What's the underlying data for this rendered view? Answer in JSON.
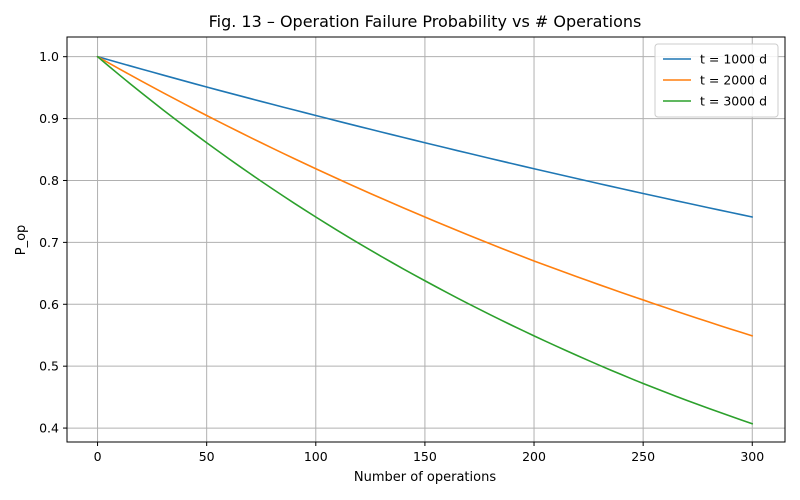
{
  "chart_data": {
    "type": "line",
    "title": "Fig. 13 – Operation Failure Probability vs # Operations",
    "xlabel": "Number of operations",
    "ylabel": "P_op",
    "xlim": [
      -14,
      315
    ],
    "ylim": [
      0.3775,
      1.0318
    ],
    "xticks": [
      0,
      50,
      100,
      150,
      200,
      250,
      300
    ],
    "yticks": [
      0.4,
      0.5,
      0.6,
      0.7,
      0.8,
      0.9,
      1.0
    ],
    "ytick_labels": [
      "0.4",
      "0.5",
      "0.6",
      "0.7",
      "0.8",
      "0.9",
      "1.0"
    ],
    "grid": true,
    "legend_position": "top-right",
    "x": [
      0,
      50,
      100,
      150,
      200,
      250,
      300
    ],
    "series": [
      {
        "name": "t = 1000 d",
        "color": "#1f77b4",
        "values": [
          1.0,
          0.951,
          0.905,
          0.861,
          0.819,
          0.779,
          0.741
        ]
      },
      {
        "name": "t = 2000 d",
        "color": "#ff7f0e",
        "values": [
          1.0,
          0.905,
          0.819,
          0.741,
          0.67,
          0.607,
          0.549
        ]
      },
      {
        "name": "t = 3000 d",
        "color": "#2ca02c",
        "values": [
          1.0,
          0.861,
          0.741,
          0.638,
          0.549,
          0.472,
          0.407
        ]
      }
    ]
  }
}
